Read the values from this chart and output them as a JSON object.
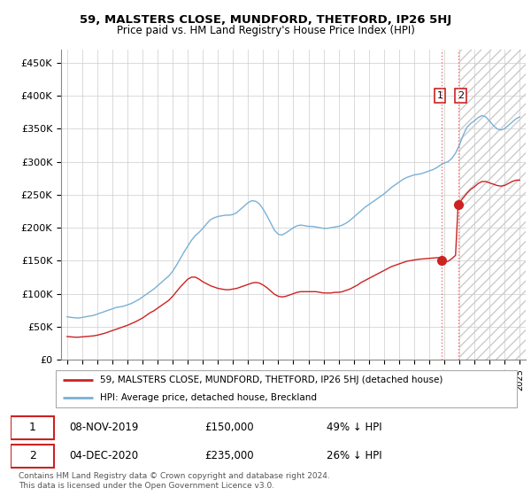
{
  "title": "59, MALSTERS CLOSE, MUNDFORD, THETFORD, IP26 5HJ",
  "subtitle": "Price paid vs. HM Land Registry's House Price Index (HPI)",
  "ylabel_ticks": [
    "£0",
    "£50K",
    "£100K",
    "£150K",
    "£200K",
    "£250K",
    "£300K",
    "£350K",
    "£400K",
    "£450K"
  ],
  "ytick_values": [
    0,
    50000,
    100000,
    150000,
    200000,
    250000,
    300000,
    350000,
    400000,
    450000
  ],
  "ylim": [
    0,
    470000
  ],
  "xlim_start": 1994.6,
  "xlim_end": 2025.4,
  "hpi_color": "#7ab0d4",
  "price_color": "#cc2222",
  "dashed_color": "#e08080",
  "legend_label1": "59, MALSTERS CLOSE, MUNDFORD, THETFORD, IP26 5HJ (detached house)",
  "legend_label2": "HPI: Average price, detached house, Breckland",
  "transaction1_date": "08-NOV-2019",
  "transaction1_price": "£150,000",
  "transaction1_note": "49% ↓ HPI",
  "transaction2_date": "04-DEC-2020",
  "transaction2_price": "£235,000",
  "transaction2_note": "26% ↓ HPI",
  "footer": "Contains HM Land Registry data © Crown copyright and database right 2024.\nThis data is licensed under the Open Government Licence v3.0.",
  "marker1_x": 2019.85,
  "marker1_price": 150000,
  "marker2_x": 2020.92,
  "marker2_price": 235000,
  "hatch_start": 2021.0,
  "hpi_data": [
    [
      1995.0,
      65000
    ],
    [
      1995.25,
      64000
    ],
    [
      1995.5,
      63500
    ],
    [
      1995.75,
      63000
    ],
    [
      1996.0,
      64000
    ],
    [
      1996.25,
      65000
    ],
    [
      1996.5,
      66000
    ],
    [
      1996.75,
      67000
    ],
    [
      1997.0,
      69000
    ],
    [
      1997.25,
      71000
    ],
    [
      1997.5,
      73000
    ],
    [
      1997.75,
      75000
    ],
    [
      1998.0,
      77000
    ],
    [
      1998.25,
      79000
    ],
    [
      1998.5,
      80000
    ],
    [
      1998.75,
      81000
    ],
    [
      1999.0,
      83000
    ],
    [
      1999.25,
      85000
    ],
    [
      1999.5,
      88000
    ],
    [
      1999.75,
      91000
    ],
    [
      2000.0,
      95000
    ],
    [
      2000.25,
      99000
    ],
    [
      2000.5,
      103000
    ],
    [
      2000.75,
      107000
    ],
    [
      2001.0,
      112000
    ],
    [
      2001.25,
      117000
    ],
    [
      2001.5,
      122000
    ],
    [
      2001.75,
      127000
    ],
    [
      2002.0,
      134000
    ],
    [
      2002.25,
      143000
    ],
    [
      2002.5,
      153000
    ],
    [
      2002.75,
      163000
    ],
    [
      2003.0,
      172000
    ],
    [
      2003.25,
      181000
    ],
    [
      2003.5,
      188000
    ],
    [
      2003.75,
      193000
    ],
    [
      2004.0,
      199000
    ],
    [
      2004.25,
      206000
    ],
    [
      2004.5,
      212000
    ],
    [
      2004.75,
      215000
    ],
    [
      2005.0,
      217000
    ],
    [
      2005.25,
      218000
    ],
    [
      2005.5,
      219000
    ],
    [
      2005.75,
      219000
    ],
    [
      2006.0,
      220000
    ],
    [
      2006.25,
      223000
    ],
    [
      2006.5,
      228000
    ],
    [
      2006.75,
      233000
    ],
    [
      2007.0,
      238000
    ],
    [
      2007.25,
      241000
    ],
    [
      2007.5,
      240000
    ],
    [
      2007.75,
      236000
    ],
    [
      2008.0,
      228000
    ],
    [
      2008.25,
      218000
    ],
    [
      2008.5,
      207000
    ],
    [
      2008.75,
      196000
    ],
    [
      2009.0,
      190000
    ],
    [
      2009.25,
      189000
    ],
    [
      2009.5,
      192000
    ],
    [
      2009.75,
      196000
    ],
    [
      2010.0,
      200000
    ],
    [
      2010.25,
      203000
    ],
    [
      2010.5,
      204000
    ],
    [
      2010.75,
      203000
    ],
    [
      2011.0,
      202000
    ],
    [
      2011.25,
      202000
    ],
    [
      2011.5,
      201000
    ],
    [
      2011.75,
      200000
    ],
    [
      2012.0,
      199000
    ],
    [
      2012.25,
      199000
    ],
    [
      2012.5,
      200000
    ],
    [
      2012.75,
      201000
    ],
    [
      2013.0,
      202000
    ],
    [
      2013.25,
      204000
    ],
    [
      2013.5,
      207000
    ],
    [
      2013.75,
      211000
    ],
    [
      2014.0,
      216000
    ],
    [
      2014.25,
      221000
    ],
    [
      2014.5,
      226000
    ],
    [
      2014.75,
      231000
    ],
    [
      2015.0,
      235000
    ],
    [
      2015.25,
      239000
    ],
    [
      2015.5,
      243000
    ],
    [
      2015.75,
      247000
    ],
    [
      2016.0,
      251000
    ],
    [
      2016.25,
      256000
    ],
    [
      2016.5,
      261000
    ],
    [
      2016.75,
      265000
    ],
    [
      2017.0,
      269000
    ],
    [
      2017.25,
      273000
    ],
    [
      2017.5,
      276000
    ],
    [
      2017.75,
      278000
    ],
    [
      2018.0,
      280000
    ],
    [
      2018.25,
      281000
    ],
    [
      2018.5,
      282000
    ],
    [
      2018.75,
      284000
    ],
    [
      2019.0,
      286000
    ],
    [
      2019.25,
      288000
    ],
    [
      2019.5,
      291000
    ],
    [
      2019.75,
      295000
    ],
    [
      2020.0,
      298000
    ],
    [
      2020.25,
      300000
    ],
    [
      2020.5,
      305000
    ],
    [
      2020.75,
      313000
    ],
    [
      2021.0,
      325000
    ],
    [
      2021.25,
      340000
    ],
    [
      2021.5,
      352000
    ],
    [
      2021.75,
      358000
    ],
    [
      2022.0,
      362000
    ],
    [
      2022.25,
      367000
    ],
    [
      2022.5,
      370000
    ],
    [
      2022.75,
      368000
    ],
    [
      2023.0,
      362000
    ],
    [
      2023.25,
      355000
    ],
    [
      2023.5,
      350000
    ],
    [
      2023.75,
      348000
    ],
    [
      2024.0,
      350000
    ],
    [
      2024.25,
      355000
    ],
    [
      2024.5,
      360000
    ],
    [
      2024.75,
      365000
    ],
    [
      2025.0,
      368000
    ]
  ],
  "price_data": [
    [
      1995.0,
      35000
    ],
    [
      1995.25,
      34500
    ],
    [
      1995.5,
      34000
    ],
    [
      1995.75,
      34000
    ],
    [
      1996.0,
      34500
    ],
    [
      1996.25,
      35000
    ],
    [
      1996.5,
      35500
    ],
    [
      1996.75,
      36000
    ],
    [
      1997.0,
      37000
    ],
    [
      1997.25,
      38500
    ],
    [
      1997.5,
      40000
    ],
    [
      1997.75,
      42000
    ],
    [
      1998.0,
      44000
    ],
    [
      1998.25,
      46000
    ],
    [
      1998.5,
      48000
    ],
    [
      1998.75,
      50000
    ],
    [
      1999.0,
      52000
    ],
    [
      1999.25,
      54500
    ],
    [
      1999.5,
      57000
    ],
    [
      1999.75,
      60000
    ],
    [
      2000.0,
      63000
    ],
    [
      2000.25,
      67000
    ],
    [
      2000.5,
      71000
    ],
    [
      2000.75,
      74000
    ],
    [
      2001.0,
      78000
    ],
    [
      2001.25,
      82000
    ],
    [
      2001.5,
      86000
    ],
    [
      2001.75,
      90000
    ],
    [
      2002.0,
      96000
    ],
    [
      2002.25,
      103000
    ],
    [
      2002.5,
      110000
    ],
    [
      2002.75,
      116000
    ],
    [
      2003.0,
      122000
    ],
    [
      2003.25,
      125000
    ],
    [
      2003.5,
      125000
    ],
    [
      2003.75,
      122000
    ],
    [
      2004.0,
      118000
    ],
    [
      2004.25,
      115000
    ],
    [
      2004.5,
      112000
    ],
    [
      2004.75,
      110000
    ],
    [
      2005.0,
      108000
    ],
    [
      2005.25,
      107000
    ],
    [
      2005.5,
      106000
    ],
    [
      2005.75,
      106000
    ],
    [
      2006.0,
      107000
    ],
    [
      2006.25,
      108000
    ],
    [
      2006.5,
      110000
    ],
    [
      2006.75,
      112000
    ],
    [
      2007.0,
      114000
    ],
    [
      2007.25,
      116000
    ],
    [
      2007.5,
      117000
    ],
    [
      2007.75,
      116000
    ],
    [
      2008.0,
      113000
    ],
    [
      2008.25,
      109000
    ],
    [
      2008.5,
      104000
    ],
    [
      2008.75,
      99000
    ],
    [
      2009.0,
      96000
    ],
    [
      2009.25,
      95000
    ],
    [
      2009.5,
      96000
    ],
    [
      2009.75,
      98000
    ],
    [
      2010.0,
      100000
    ],
    [
      2010.25,
      102000
    ],
    [
      2010.5,
      103000
    ],
    [
      2010.75,
      103000
    ],
    [
      2011.0,
      103000
    ],
    [
      2011.25,
      103000
    ],
    [
      2011.5,
      103000
    ],
    [
      2011.75,
      102000
    ],
    [
      2012.0,
      101000
    ],
    [
      2012.25,
      101000
    ],
    [
      2012.5,
      101000
    ],
    [
      2012.75,
      102000
    ],
    [
      2013.0,
      102000
    ],
    [
      2013.25,
      103000
    ],
    [
      2013.5,
      105000
    ],
    [
      2013.75,
      107000
    ],
    [
      2014.0,
      110000
    ],
    [
      2014.25,
      113000
    ],
    [
      2014.5,
      117000
    ],
    [
      2014.75,
      120000
    ],
    [
      2015.0,
      123000
    ],
    [
      2015.25,
      126000
    ],
    [
      2015.5,
      129000
    ],
    [
      2015.75,
      132000
    ],
    [
      2016.0,
      135000
    ],
    [
      2016.25,
      138000
    ],
    [
      2016.5,
      141000
    ],
    [
      2016.75,
      143000
    ],
    [
      2017.0,
      145000
    ],
    [
      2017.25,
      147000
    ],
    [
      2017.5,
      149000
    ],
    [
      2017.75,
      150000
    ],
    [
      2018.0,
      151000
    ],
    [
      2018.25,
      152000
    ],
    [
      2018.5,
      152500
    ],
    [
      2018.75,
      153000
    ],
    [
      2019.0,
      153500
    ],
    [
      2019.25,
      154000
    ],
    [
      2019.5,
      154500
    ],
    [
      2019.75,
      154500
    ],
    [
      2019.85,
      150000
    ],
    [
      2020.0,
      148000
    ],
    [
      2020.25,
      149000
    ],
    [
      2020.5,
      153000
    ],
    [
      2020.75,
      158000
    ],
    [
      2020.92,
      235000
    ],
    [
      2021.0,
      238000
    ],
    [
      2021.25,
      245000
    ],
    [
      2021.5,
      252000
    ],
    [
      2021.75,
      258000
    ],
    [
      2022.0,
      262000
    ],
    [
      2022.25,
      267000
    ],
    [
      2022.5,
      270000
    ],
    [
      2022.75,
      270000
    ],
    [
      2023.0,
      268000
    ],
    [
      2023.25,
      266000
    ],
    [
      2023.5,
      264000
    ],
    [
      2023.75,
      263000
    ],
    [
      2024.0,
      264000
    ],
    [
      2024.25,
      267000
    ],
    [
      2024.5,
      270000
    ],
    [
      2024.75,
      272000
    ],
    [
      2025.0,
      272000
    ]
  ]
}
